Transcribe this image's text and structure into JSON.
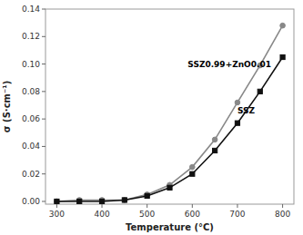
{
  "chart_data": {
    "type": "line",
    "x": [
      300,
      350,
      400,
      450,
      500,
      550,
      600,
      650,
      700,
      750,
      800
    ],
    "series": [
      {
        "color": "#888888",
        "marker": "circle",
        "line_style": "solid",
        "values": [
          0.0,
          0.001,
          0.001,
          0.001,
          0.005,
          0.012,
          0.025,
          0.045,
          0.072,
          0.099,
          0.128
        ]
      },
      {
        "color": "#111111",
        "marker": "square",
        "line_style": "solid",
        "values": [
          0.0,
          0.0,
          0.0,
          0.001,
          0.004,
          0.01,
          0.02,
          0.037,
          0.057,
          0.08,
          0.105
        ]
      }
    ],
    "x_label": "Temperature (°C)",
    "y_label": "σ (S·cm⁻¹)",
    "xlim": [
      275,
      825
    ],
    "ylim": [
      -0.002,
      0.14
    ],
    "xticks": [
      300,
      400,
      500,
      600,
      700,
      800
    ],
    "yticks": [
      {
        "value": 0.0,
        "label": "0.00"
      },
      0.02,
      0.04,
      0.06,
      0.08,
      {
        "value": 0.1,
        "label": "0.10"
      },
      0.12,
      0.14
    ],
    "grid": false,
    "annotations": [
      {
        "text": "SSZ0.99+ZnO0.01",
        "x": 590,
        "y": 0.098
      },
      {
        "text": "SSZ",
        "x": 700,
        "y": 0.064
      }
    ]
  }
}
